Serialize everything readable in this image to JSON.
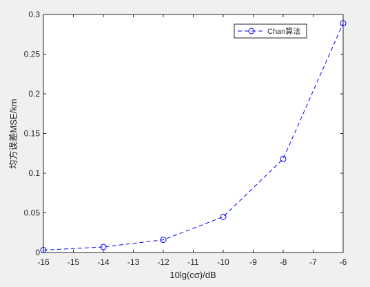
{
  "chart_data": {
    "type": "line",
    "title": "",
    "xlabel": "10lg(cσ)/dB",
    "ylabel": "均方误差MSE/km",
    "xlim": [
      -16,
      -6
    ],
    "ylim": [
      0,
      0.3
    ],
    "xticks": [
      -16,
      -15,
      -14,
      -13,
      -12,
      -11,
      -10,
      -9,
      -8,
      -7,
      -6
    ],
    "yticks": [
      0,
      0.05,
      0.1,
      0.15,
      0.2,
      0.25,
      0.3
    ],
    "xtick_labels": [
      "-16",
      "-15",
      "-14",
      "-13",
      "-12",
      "-11",
      "-10",
      "-9",
      "-8",
      "-7",
      "-6"
    ],
    "ytick_labels": [
      "0",
      "0.05",
      "0.1",
      "0.15",
      "0.2",
      "0.25",
      "0.3"
    ],
    "grid": false,
    "legend_position": "top-right",
    "series": [
      {
        "name": "Chan算法",
        "color": "#0000ff",
        "line_style": "dashed",
        "marker": "circle",
        "x": [
          -16,
          -14,
          -12,
          -10,
          -8,
          -6
        ],
        "y": [
          0.003,
          0.007,
          0.016,
          0.045,
          0.118,
          0.289
        ]
      }
    ]
  }
}
